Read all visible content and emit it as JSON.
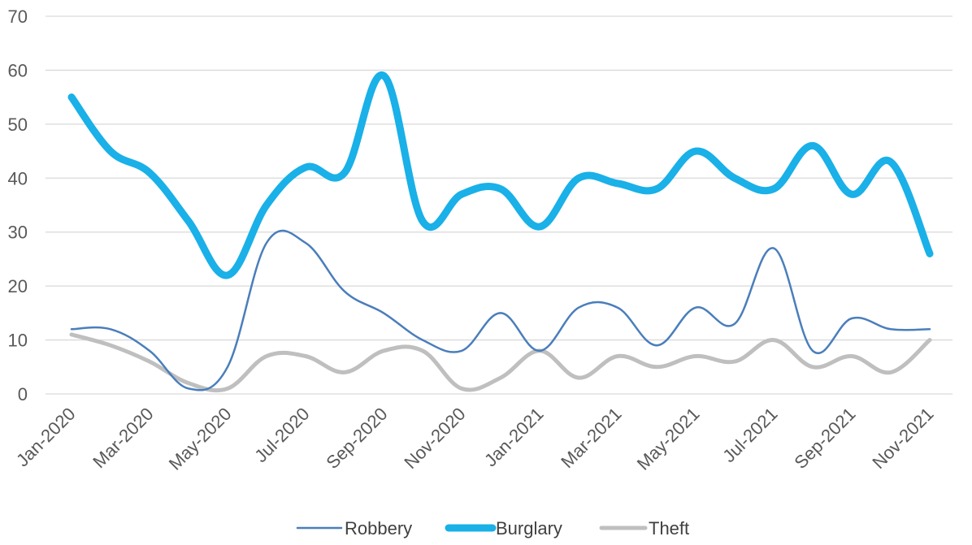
{
  "chart_data": {
    "type": "line",
    "title": "",
    "xlabel": "",
    "ylabel": "",
    "ylim": [
      0,
      70
    ],
    "yticks": [
      0,
      10,
      20,
      30,
      40,
      50,
      60,
      70
    ],
    "grid": "horizontal",
    "smooth": true,
    "legend_position": "bottom",
    "categories": [
      "Jan-2020",
      "Feb-2020",
      "Mar-2020",
      "Apr-2020",
      "May-2020",
      "Jun-2020",
      "Jul-2020",
      "Aug-2020",
      "Sep-2020",
      "Oct-2020",
      "Nov-2020",
      "Dec-2020",
      "Jan-2021",
      "Feb-2021",
      "Mar-2021",
      "Apr-2021",
      "May-2021",
      "Jun-2021",
      "Jul-2021",
      "Aug-2021",
      "Sep-2021",
      "Oct-2021",
      "Nov-2021"
    ],
    "xtick_labels": [
      "Jan-2020",
      "Mar-2020",
      "May-2020",
      "Jul-2020",
      "Sep-2020",
      "Nov-2020",
      "Jan-2021",
      "Mar-2021",
      "May-2021",
      "Jul-2021",
      "Sep-2021",
      "Nov-2021"
    ],
    "series": [
      {
        "name": "Robbery",
        "color": "#4a7ebb",
        "values": [
          12,
          12,
          8,
          1,
          5,
          28,
          28,
          19,
          15,
          10,
          8,
          15,
          8,
          16,
          16,
          9,
          16,
          13,
          27,
          8,
          14,
          12,
          12
        ]
      },
      {
        "name": "Burglary",
        "color": "#1ab0e8",
        "values": [
          55,
          45,
          41,
          32,
          22,
          35,
          42,
          41,
          59,
          32,
          37,
          38,
          31,
          40,
          39,
          38,
          45,
          40,
          38,
          46,
          37,
          43,
          26
        ]
      },
      {
        "name": "Theft",
        "color": "#bfbfbf",
        "values": [
          11,
          9,
          6,
          2,
          1,
          7,
          7,
          4,
          8,
          8,
          1,
          3,
          8,
          3,
          7,
          5,
          7,
          6,
          10,
          5,
          7,
          4,
          10
        ]
      }
    ]
  }
}
